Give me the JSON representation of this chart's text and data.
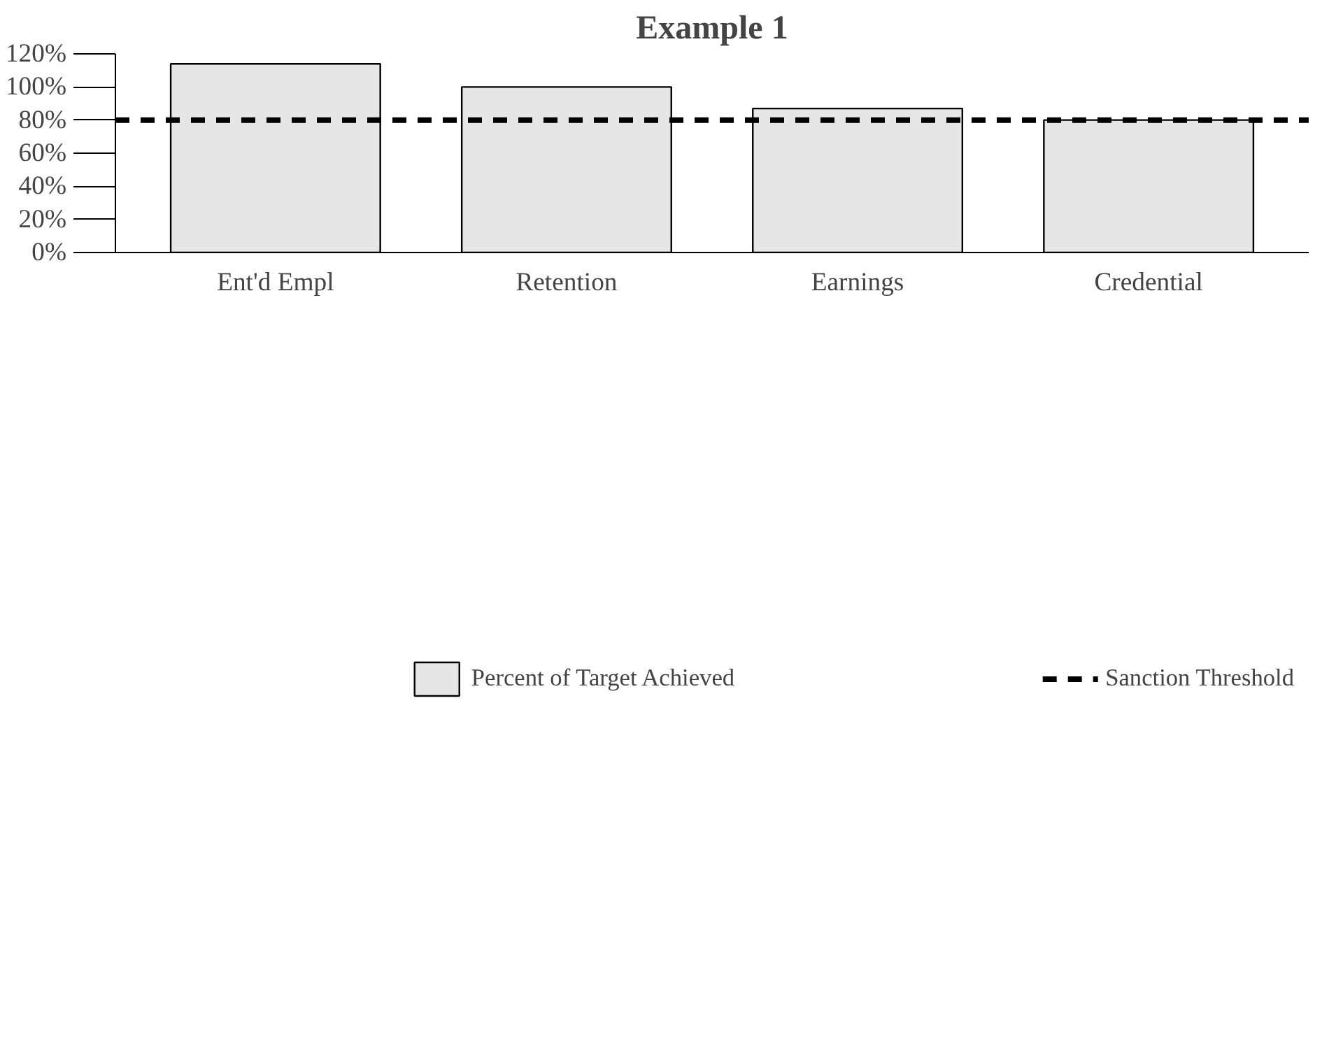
{
  "chart_data": {
    "type": "bar",
    "title": "Example 1",
    "categories": [
      "Ent'd Empl",
      "Retention",
      "Earnings",
      "Credential"
    ],
    "series": [
      {
        "name": "Percent of Target Achieved",
        "color": "#e6e6e6",
        "values": [
          114,
          100,
          87,
          80
        ]
      }
    ],
    "ylim": [
      0,
      120
    ],
    "yticks": [
      {
        "value": 0,
        "label": "0%"
      },
      {
        "value": 20,
        "label": "20%"
      },
      {
        "value": 40,
        "label": "40%"
      },
      {
        "value": 60,
        "label": "60%"
      },
      {
        "value": 80,
        "label": "80%"
      },
      {
        "value": 100,
        "label": "100%"
      },
      {
        "value": 120,
        "label": "120%"
      }
    ],
    "ref_lines": [
      {
        "axis": "y",
        "value": 80,
        "label": "Sanction Threshold",
        "color": "#000000",
        "line_style": "dashed"
      }
    ],
    "grid": false,
    "legend": "bottom"
  }
}
